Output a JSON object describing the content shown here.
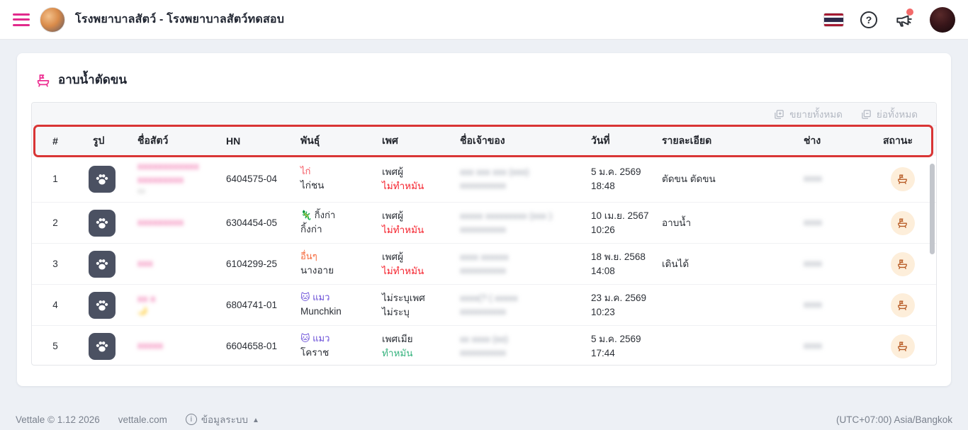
{
  "appbar": {
    "clinic_title": "โรงพยาบาลสัตว์ - โรงพยาบาลสัตว์ทดสอบ",
    "help_glyph": "?"
  },
  "page": {
    "title": "อาบน้ำตัดขน"
  },
  "toolbar": {
    "expand_all": "ขยายทั้งหมด",
    "collapse_all": "ย่อทั้งหมด"
  },
  "table": {
    "columns": [
      "#",
      "รูป",
      "ชื่อสัตว์",
      "HN",
      "พันธุ์",
      "เพศ",
      "ชื่อเจ้าของ",
      "วันที่",
      "รายละเอียด",
      "ช่าง",
      "สถานะ"
    ],
    "rows": [
      {
        "no": "1",
        "pet_name_redacted": [
          "xxxxxxxxxxxx",
          "xxxxxxxxx"
        ],
        "pet_extra_redacted": "xx",
        "hn": "6404575-04",
        "breed_tag": "ไก่",
        "breed_tag_color": "#f5555f",
        "breed_emoji": "",
        "breed_name": "ไก่ชน",
        "sex": "เพศผู้",
        "neuter": "ไม่ทำหมัน",
        "neuter_color": "#f5222d",
        "owner_redacted": [
          "xxx xxx xxx (xxx)",
          "xxxxxxxxxx"
        ],
        "date": "5 ม.ค. 2569",
        "time": "18:48",
        "detail": "ตัดขน ตัดขน",
        "groomer_redacted": "xxxx"
      },
      {
        "no": "2",
        "pet_name_redacted": [
          "xxxxxxxxx"
        ],
        "pet_extra_redacted": "",
        "hn": "6304454-05",
        "breed_tag": "กิ้งก่า",
        "breed_tag_color": "#2b2f36",
        "breed_emoji": "🦎",
        "breed_name": "กิ้งก่า",
        "sex": "เพศผู้",
        "neuter": "ไม่ทำหมัน",
        "neuter_color": "#f5222d",
        "owner_redacted": [
          "xxxxx xxxxxxxxx (xxx )",
          "xxxxxxxxxx"
        ],
        "date": "10 เม.ย. 2567",
        "time": "10:26",
        "detail": "อาบน้ำ",
        "groomer_redacted": "xxxx"
      },
      {
        "no": "3",
        "pet_name_redacted": [
          "xxx"
        ],
        "pet_extra_redacted": "",
        "hn": "6104299-25",
        "breed_tag": "อื่นๆ",
        "breed_tag_color": "#f56a3d",
        "breed_emoji": "",
        "breed_name": "นางอาย",
        "sex": "เพศผู้",
        "neuter": "ไม่ทำหมัน",
        "neuter_color": "#f5222d",
        "owner_redacted": [
          "xxxx xxxxxx",
          "xxxxxxxxxx"
        ],
        "date": "18 พ.ย. 2568",
        "time": "14:08",
        "detail": "เดินได้",
        "groomer_redacted": "xxxx"
      },
      {
        "no": "4",
        "pet_name_redacted": [
          "xx x"
        ],
        "pet_extra_redacted": "🌙",
        "hn": "6804741-01",
        "breed_tag": "แมว",
        "breed_tag_color": "#6a4fd8",
        "breed_emoji": "🐱",
        "breed_name": "Munchkin",
        "sex": "ไม่ระบุเพศ",
        "neuter": "ไม่ระบุ",
        "neuter_color": "#2b2f36",
        "owner_redacted": [
          "xxxx(? ( xxxxx",
          "xxxxxxxxxx"
        ],
        "date": "23 ม.ค. 2569",
        "time": "10:23",
        "detail": "",
        "groomer_redacted": "xxxx"
      },
      {
        "no": "5",
        "pet_name_redacted": [
          "xxxxx"
        ],
        "pet_extra_redacted": "",
        "hn": "6604658-01",
        "breed_tag": "แมว",
        "breed_tag_color": "#6a4fd8",
        "breed_emoji": "🐱",
        "breed_name": "โคราช",
        "sex": "เพศเมีย",
        "neuter": "ทำหมัน",
        "neuter_color": "#36b37e",
        "owner_redacted": [
          "xx xxxx (xx)",
          "xxxxxxxxxx"
        ],
        "date": "5 ม.ค. 2569",
        "time": "17:44",
        "detail": "",
        "groomer_redacted": "xxxx"
      }
    ]
  },
  "footer": {
    "copyright": "Vettale © 1.12 2026",
    "website": "vettale.com",
    "system_info": "ข้อมูลระบบ",
    "timezone": "(UTC+07:00) Asia/Bangkok"
  },
  "colors": {
    "accent_pink": "#ed2f92",
    "annotation_red": "#d93535",
    "status_chip_bg": "#fdeeda",
    "status_icon": "#b85c26",
    "neutered_green": "#36b37e",
    "not_neutered_red": "#f5222d",
    "cat_purple": "#6a4fd8"
  }
}
